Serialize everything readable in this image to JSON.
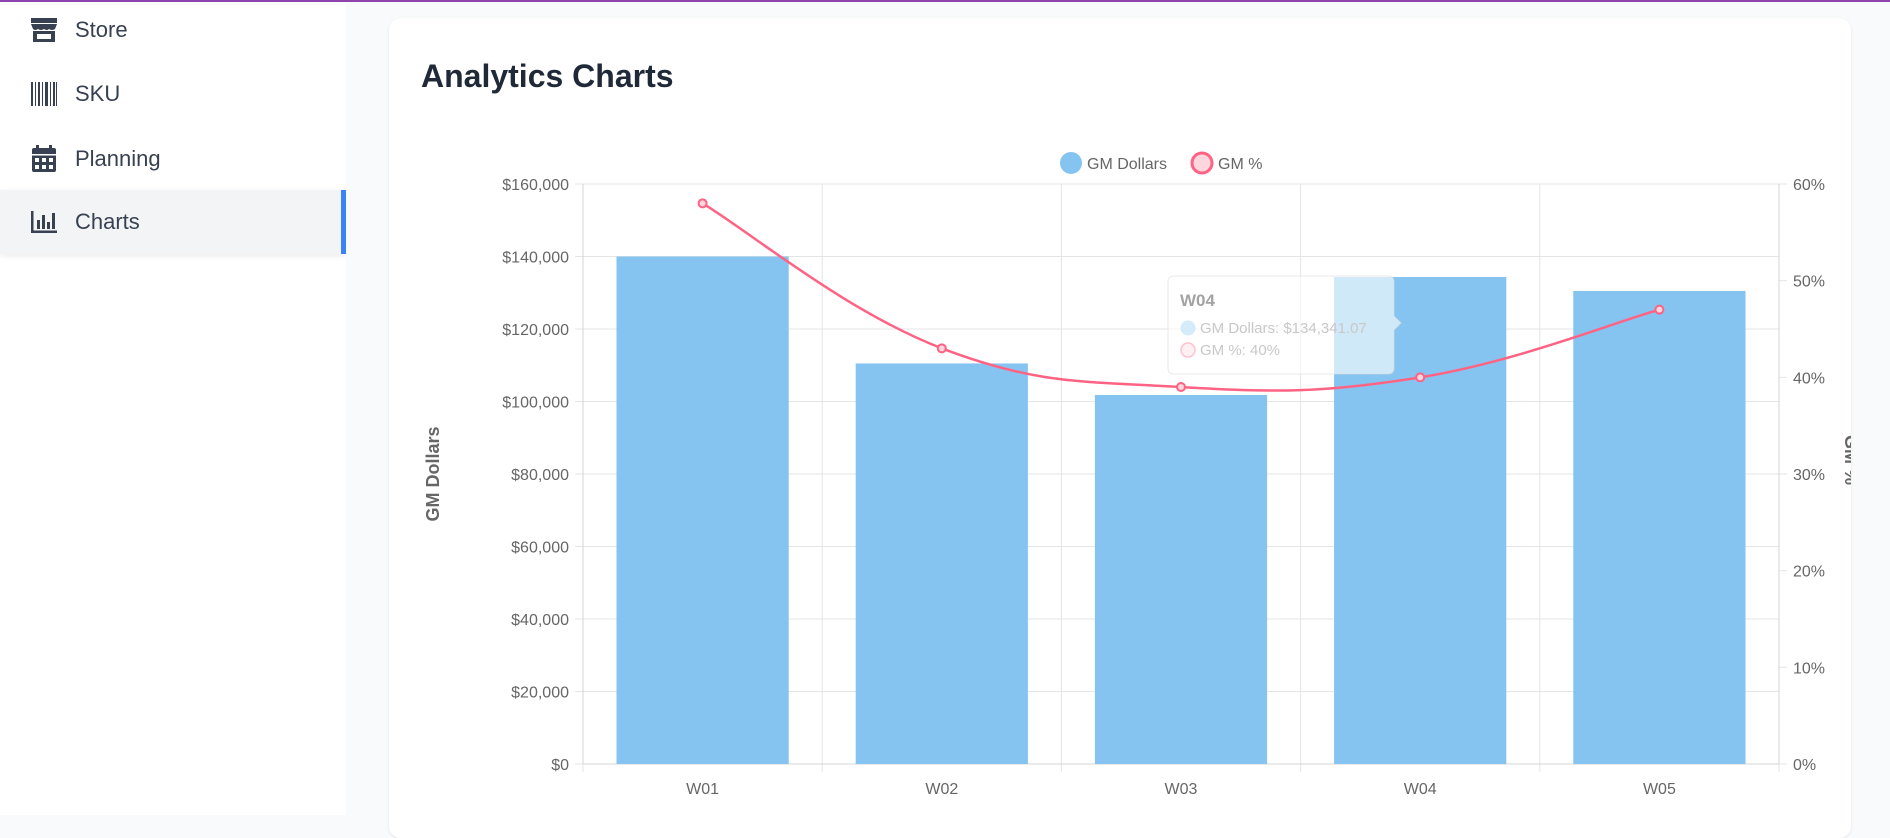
{
  "sidebar": {
    "items": [
      {
        "label": "Store",
        "icon": "store-icon"
      },
      {
        "label": "SKU",
        "icon": "barcode-icon"
      },
      {
        "label": "Planning",
        "icon": "calendar-icon"
      },
      {
        "label": "Charts",
        "icon": "bar-chart-icon",
        "active": true
      }
    ]
  },
  "page": {
    "title": "Analytics Charts"
  },
  "colors": {
    "bar": "#85c4f0",
    "bar_highlight": "#a6d4f5",
    "line": "#ff6384",
    "accent": "#3b82f6",
    "top_border": "#8e44ad"
  },
  "chart_data": {
    "type": "bar",
    "categories": [
      "W01",
      "W02",
      "W03",
      "W04",
      "W05"
    ],
    "series": [
      {
        "name": "GM Dollars",
        "type": "bar",
        "axis": "left",
        "values": [
          140000,
          110500,
          101800,
          134341.07,
          130500
        ]
      },
      {
        "name": "GM %",
        "type": "line",
        "axis": "right",
        "values": [
          58,
          43,
          39,
          40,
          47
        ]
      }
    ],
    "ylabel": "GM Dollars",
    "y2label": "GM %",
    "ylim": [
      0,
      160000
    ],
    "y2lim": [
      0,
      60
    ],
    "yticks": [
      "$0",
      "$20,000",
      "$40,000",
      "$60,000",
      "$80,000",
      "$100,000",
      "$120,000",
      "$140,000",
      "$160,000"
    ],
    "y2ticks": [
      "0%",
      "10%",
      "20%",
      "30%",
      "40%",
      "50%",
      "60%"
    ],
    "legend": "top",
    "grid": true,
    "tooltip": {
      "title": "W04",
      "lines": [
        "GM Dollars: $134,341.07",
        "GM %: 40%"
      ]
    }
  }
}
